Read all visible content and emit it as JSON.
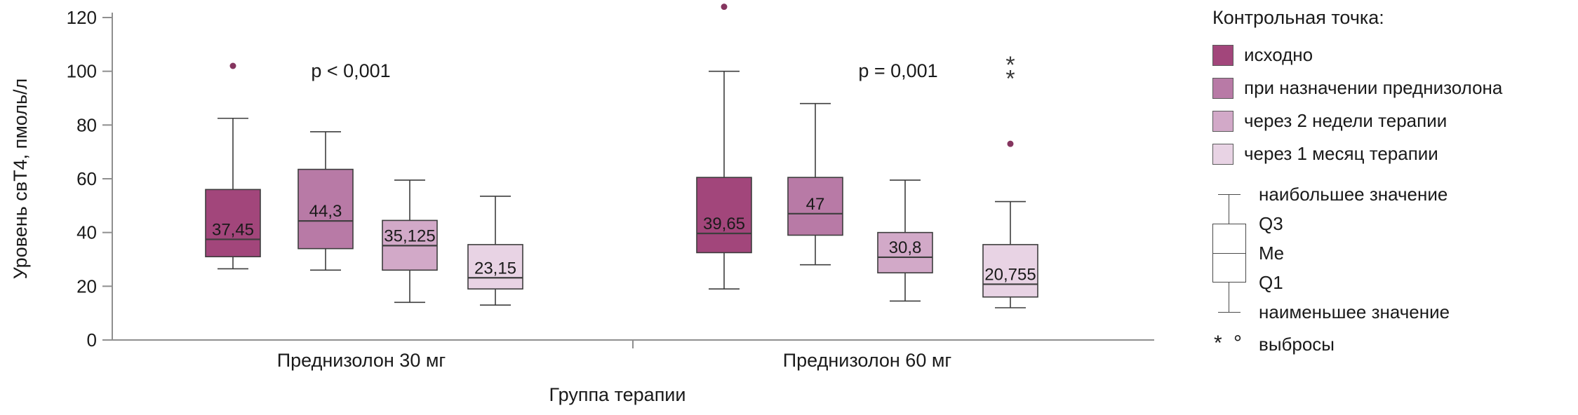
{
  "chart_data": {
    "type": "boxplot",
    "title": "",
    "ylabel": "Уровень свТ4, пмоль/л",
    "xlabel": "Группа терапии",
    "ylim": [
      0,
      120
    ],
    "yticks": [
      0,
      20,
      40,
      60,
      80,
      100,
      120
    ],
    "grid": false,
    "groups": [
      {
        "label": "Преднизолон 30 мг",
        "p_label": "p < 0,001",
        "boxes": [
          {
            "series": "исходно",
            "low": 26.5,
            "q1": 31,
            "median": 37.45,
            "q3": 56,
            "high": 82.5,
            "median_label": "37,45",
            "outliers": [
              {
                "value": 102,
                "symbol": "circle"
              }
            ]
          },
          {
            "series": "при назначении преднизолона",
            "low": 26,
            "q1": 34,
            "median": 44.3,
            "q3": 63.5,
            "high": 77.5,
            "median_label": "44,3",
            "outliers": []
          },
          {
            "series": "через 2 недели терапии",
            "low": 14,
            "q1": 26,
            "median": 35.125,
            "q3": 44.5,
            "high": 59.5,
            "median_label": "35,125",
            "outliers": []
          },
          {
            "series": "через 1 месяц терапии",
            "low": 13,
            "q1": 19,
            "median": 23.15,
            "q3": 35.5,
            "high": 53.5,
            "median_label": "23,15",
            "outliers": []
          }
        ]
      },
      {
        "label": "Преднизолон 60 мг",
        "p_label": "p = 0,001",
        "boxes": [
          {
            "series": "исходно",
            "low": 19,
            "q1": 32.5,
            "median": 39.65,
            "q3": 60.5,
            "high": 100,
            "median_label": "39,65",
            "outliers": [
              {
                "value": 124,
                "symbol": "circle"
              }
            ]
          },
          {
            "series": "при назначении преднизолона",
            "low": 28,
            "q1": 39,
            "median": 47,
            "q3": 60.5,
            "high": 88,
            "median_label": "47",
            "outliers": []
          },
          {
            "series": "через 2 недели терапии",
            "low": 14.5,
            "q1": 25,
            "median": 30.8,
            "q3": 40,
            "high": 59.5,
            "median_label": "30,8",
            "outliers": []
          },
          {
            "series": "через 1 месяц терапии",
            "low": 12,
            "q1": 16,
            "median": 20.755,
            "q3": 35.5,
            "high": 51.5,
            "median_label": "20,755",
            "outliers": [
              {
                "value": 103,
                "symbol": "star"
              },
              {
                "value": 98,
                "symbol": "star"
              },
              {
                "value": 73,
                "symbol": "circle"
              }
            ]
          }
        ]
      }
    ],
    "legend": {
      "title": "Контрольная точка:",
      "position": "right",
      "items": [
        {
          "label": "исходно",
          "color": "#a2467b"
        },
        {
          "label": "при назначении преднизолона",
          "color": "#b87aa6"
        },
        {
          "label": "через 2 недели терапии",
          "color": "#d2a9c8"
        },
        {
          "label": "через 1 месяц терапии",
          "color": "#e8d3e4"
        }
      ],
      "key": {
        "max": "наибольшее значение",
        "q3": "Q3",
        "me": "Me",
        "q1": "Q1",
        "min": "наименьшее значение",
        "outlier_symbols": "* °",
        "outliers": "выбросы"
      }
    },
    "colors": {
      "axis": "#8f8f8f",
      "box_stroke": "#3d3d3d",
      "text": "#1a1a1a",
      "outlier_dot": "#85355f",
      "outlier_star": "#3a3a3a"
    }
  }
}
